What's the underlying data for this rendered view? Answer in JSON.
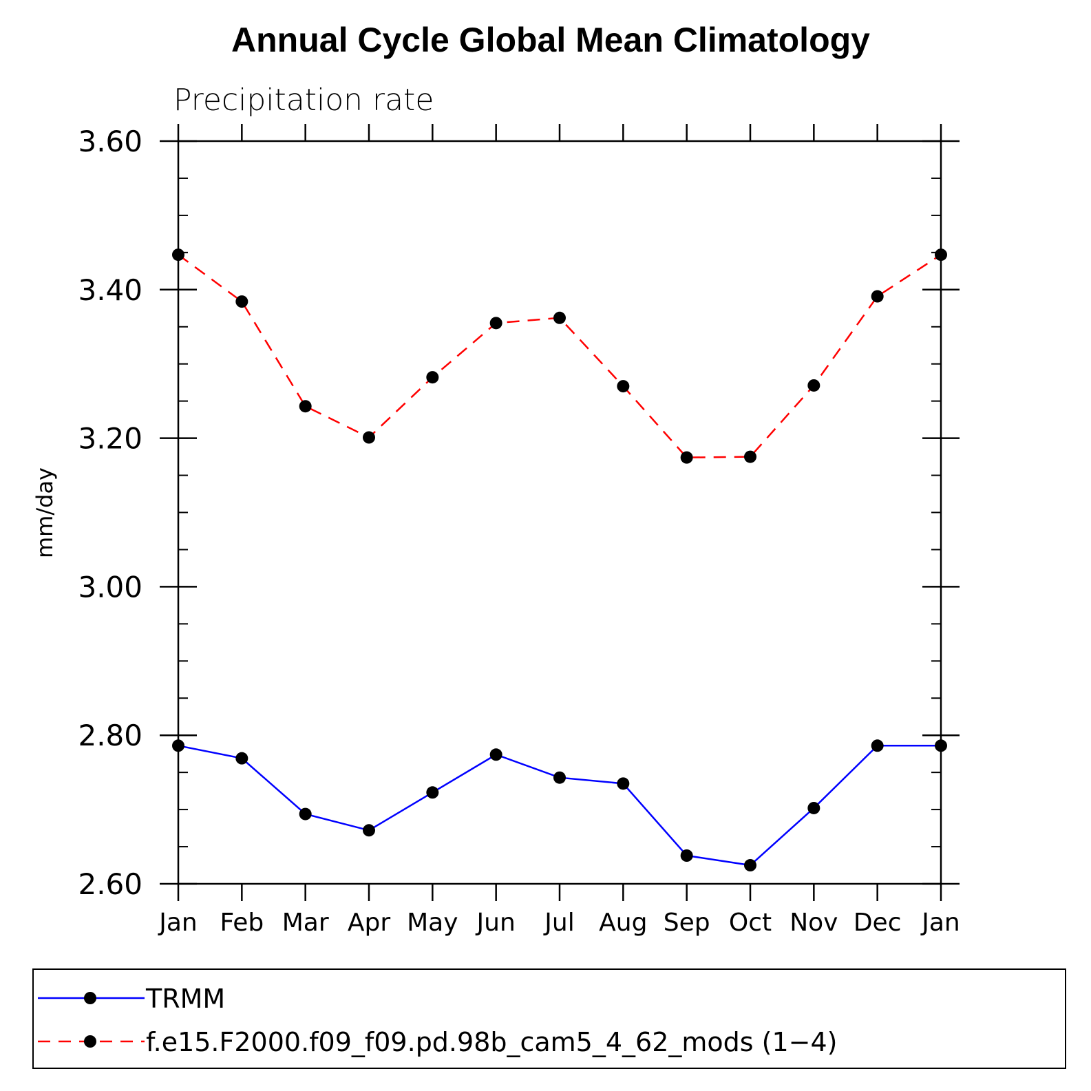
{
  "chart_data": {
    "type": "line",
    "title": "Annual Cycle Global Mean Climatology",
    "subtitle": "Precipitation rate",
    "xlabel": "",
    "ylabel": "mm/day",
    "categories": [
      "Jan",
      "Feb",
      "Mar",
      "Apr",
      "May",
      "Jun",
      "Jul",
      "Aug",
      "Sep",
      "Oct",
      "Nov",
      "Dec",
      "Jan"
    ],
    "ylim": [
      2.6,
      3.6
    ],
    "yticks": [
      "2.60",
      "2.80",
      "3.00",
      "3.20",
      "3.40",
      "3.60"
    ],
    "ytick_values": [
      2.6,
      2.8,
      3.0,
      3.2,
      3.4,
      3.6
    ],
    "yminor_step": 0.05,
    "grid": false,
    "legend_position": "bottom",
    "series": [
      {
        "name": "TRMM",
        "color": "#0000ff",
        "dash": "solid",
        "marker": "filled-circle",
        "values": [
          2.786,
          2.769,
          2.694,
          2.672,
          2.723,
          2.774,
          2.743,
          2.735,
          2.638,
          2.625,
          2.702,
          2.786,
          2.786
        ]
      },
      {
        "name": "f.e15.F2000.f09_f09.pd.98b_cam5_4_62_mods (1−4)",
        "color": "#ff0000",
        "dash": "dashed",
        "marker": "filled-circle",
        "values": [
          3.447,
          3.384,
          3.243,
          3.201,
          3.282,
          3.355,
          3.362,
          3.27,
          3.174,
          3.175,
          3.271,
          3.391,
          3.447
        ]
      }
    ]
  }
}
